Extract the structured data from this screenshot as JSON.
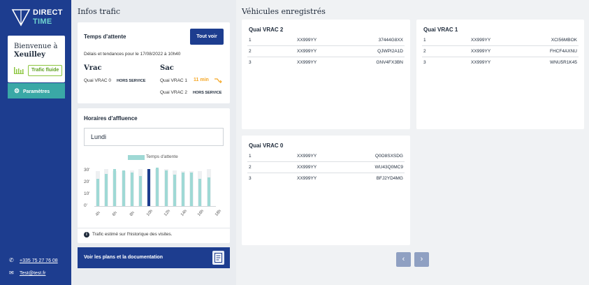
{
  "brand": {
    "line1": "DIRECT",
    "line2": "TIME"
  },
  "sidebar": {
    "welcome_line1": "Bienvenue à",
    "welcome_line2": "Xeuilley",
    "traffic_badge": "Trafic fluide",
    "params_label": "Paramètres",
    "phone": "+335 75 27 76 08",
    "email": "Test@test.fr"
  },
  "infos": {
    "title": "Infos trafic",
    "wait": {
      "title": "Temps d'attente",
      "see_all": "Tout voir",
      "subtitle": "Délais et tendances pour le 17/08/2022 à 10h40",
      "groups": [
        {
          "name": "Vrac",
          "rows": [
            {
              "quai": "Quai VRAC 0",
              "status": "HORS SERVICE"
            }
          ]
        },
        {
          "name": "Sac",
          "rows": [
            {
              "quai": "Quai VRAC 1",
              "status": "11 min"
            },
            {
              "quai": "Quai VRAC 2",
              "status": "HORS SERVICE"
            }
          ]
        }
      ]
    },
    "affluence": {
      "title": "Horaires d'affluence",
      "day": "Lundi",
      "info": "Trafic estimé sur l'historique des visites."
    },
    "doc_button": "Voir les plans et la documentation"
  },
  "chart_data": {
    "type": "bar",
    "legend": "Temps d'attente",
    "y_ticks": [
      "0'",
      "10'",
      "20'",
      "30'"
    ],
    "ylim": [
      0,
      35
    ],
    "x_tick_labels": [
      "4h",
      "6h",
      "8h",
      "10h",
      "12h",
      "14h",
      "16h",
      "18h"
    ],
    "background_values": [
      29,
      31,
      29,
      29,
      30,
      31,
      31,
      31,
      31,
      30,
      29,
      29,
      29,
      31
    ],
    "values": [
      23,
      27,
      31,
      30,
      28,
      25,
      31,
      32,
      30,
      26,
      28,
      28,
      23,
      24
    ],
    "highlight_index": 6,
    "colors": {
      "bar": "#9fd9d5",
      "highlight": "#1d3d8f",
      "background": "#eef0f2"
    }
  },
  "vehicles": {
    "title": "Véhicules enregistrés",
    "cards": [
      {
        "title": "Quai VRAC 2",
        "rows": [
          [
            "1",
            "XX999YY",
            "37444G8XX"
          ],
          [
            "2",
            "XX999YY",
            "QJWPI2A1D"
          ],
          [
            "3",
            "XX999YY",
            "GNV4FX3BN"
          ]
        ]
      },
      {
        "title": "Quai VRAC 1",
        "rows": [
          [
            "1",
            "XX999YY",
            "XCI56MBOK"
          ],
          [
            "2",
            "XX999YY",
            "FHCF4AXNU"
          ],
          [
            "3",
            "XX999YY",
            "WNU5R1K45"
          ]
        ]
      },
      {
        "title": "Quai VRAC 0",
        "rows": [
          [
            "1",
            "XX999YY",
            "Q0O8SXSDG"
          ],
          [
            "2",
            "XX999YY",
            "WU43Q0MC9"
          ],
          [
            "3",
            "XX999YY",
            "BFJ2YD4MG"
          ]
        ]
      }
    ]
  },
  "pager": {
    "prev": "‹",
    "next": "›"
  }
}
